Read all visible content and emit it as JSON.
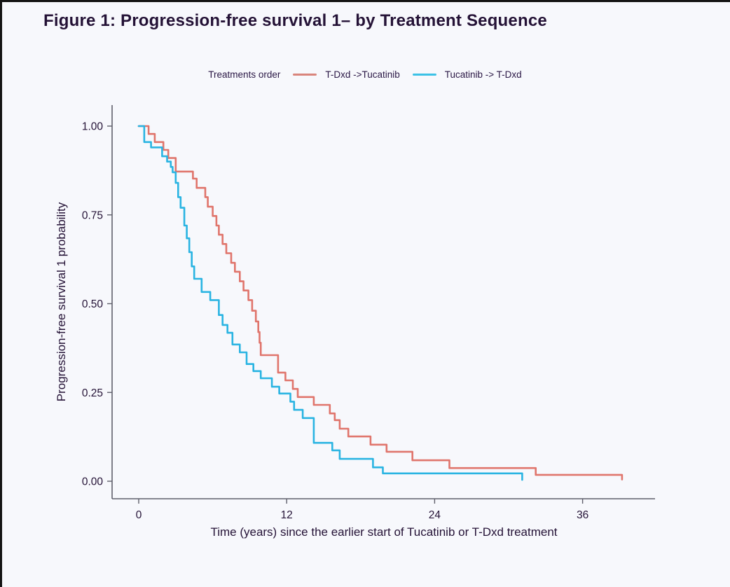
{
  "title": "Figure 1: Progression-free survival 1– by Treatment Sequence",
  "legend": {
    "title": "Treatments order",
    "items": [
      {
        "label": "T-Dxd ->Tucatinib",
        "swatch_color": "#d9857c"
      },
      {
        "label": "Tucatinib -> T-Dxd",
        "swatch_color": "#3cc2e6"
      }
    ]
  },
  "colors": {
    "curve_tdxd_first": "#e0756c",
    "curve_tucatinib_first": "#2ab4e2",
    "axis_line": "#5f5f6b",
    "text": "#241236",
    "background": "#f7f8fc"
  },
  "chart_data": {
    "type": "line",
    "subtype": "kaplan-meier-step",
    "title": "Figure 1: Progression-free survival 1– by Treatment Sequence",
    "xlabel": "Time (years) since the earlier start of Tucatinib or T-Dxd treatment",
    "ylabel": "Progression-free survival 1 probability",
    "legend_title": "Treatments order",
    "legend_position": "top",
    "grid": false,
    "xlim": [
      0,
      42
    ],
    "ylim": [
      0,
      1
    ],
    "x_ticks": [
      {
        "v": 0,
        "label": "0"
      },
      {
        "v": 12,
        "label": "12"
      },
      {
        "v": 24,
        "label": "24"
      },
      {
        "v": 36,
        "label": "36"
      }
    ],
    "y_ticks": [
      {
        "v": 1.0,
        "label": "1.00"
      },
      {
        "v": 0.75,
        "label": "0.75"
      },
      {
        "v": 0.5,
        "label": "0.50"
      },
      {
        "v": 0.25,
        "label": "0.25"
      },
      {
        "v": 0.0,
        "label": "0.00"
      }
    ],
    "series": [
      {
        "name": "T-Dxd ->Tucatinib",
        "color": "#e0756c",
        "points_time_probability": [
          [
            0,
            1.0
          ],
          [
            0.8,
            0.978
          ],
          [
            1.3,
            0.955
          ],
          [
            2.0,
            0.933
          ],
          [
            2.4,
            0.91
          ],
          [
            3.0,
            0.872
          ],
          [
            4.4,
            0.852
          ],
          [
            4.7,
            0.826
          ],
          [
            5.4,
            0.8
          ],
          [
            5.6,
            0.773
          ],
          [
            6.0,
            0.747
          ],
          [
            6.3,
            0.72
          ],
          [
            6.5,
            0.694
          ],
          [
            6.8,
            0.668
          ],
          [
            7.1,
            0.642
          ],
          [
            7.5,
            0.615
          ],
          [
            7.8,
            0.59
          ],
          [
            8.2,
            0.563
          ],
          [
            8.5,
            0.537
          ],
          [
            8.9,
            0.51
          ],
          [
            9.2,
            0.48
          ],
          [
            9.5,
            0.45
          ],
          [
            9.7,
            0.42
          ],
          [
            9.8,
            0.39
          ],
          [
            9.9,
            0.355
          ],
          [
            11.3,
            0.306
          ],
          [
            11.9,
            0.284
          ],
          [
            12.5,
            0.26
          ],
          [
            12.9,
            0.237
          ],
          [
            14.2,
            0.215
          ],
          [
            15.5,
            0.191
          ],
          [
            15.9,
            0.172
          ],
          [
            16.3,
            0.148
          ],
          [
            17.0,
            0.126
          ],
          [
            18.8,
            0.103
          ],
          [
            20.1,
            0.083
          ],
          [
            22.2,
            0.059
          ],
          [
            25.2,
            0.037
          ],
          [
            32.2,
            0.018
          ],
          [
            39.2,
            0.005
          ]
        ]
      },
      {
        "name": "Tucatinib -> T-Dxd",
        "color": "#2ab4e2",
        "points_time_probability": [
          [
            0,
            1.0
          ],
          [
            0.45,
            0.955
          ],
          [
            1.0,
            0.94
          ],
          [
            1.9,
            0.915
          ],
          [
            2.3,
            0.9
          ],
          [
            2.6,
            0.885
          ],
          [
            2.75,
            0.87
          ],
          [
            3.0,
            0.84
          ],
          [
            3.2,
            0.8
          ],
          [
            3.4,
            0.77
          ],
          [
            3.7,
            0.72
          ],
          [
            3.9,
            0.684
          ],
          [
            4.1,
            0.645
          ],
          [
            4.3,
            0.605
          ],
          [
            4.5,
            0.57
          ],
          [
            5.1,
            0.533
          ],
          [
            5.8,
            0.51
          ],
          [
            6.5,
            0.468
          ],
          [
            6.8,
            0.44
          ],
          [
            7.2,
            0.418
          ],
          [
            7.6,
            0.385
          ],
          [
            8.2,
            0.363
          ],
          [
            8.75,
            0.33
          ],
          [
            9.3,
            0.31
          ],
          [
            9.9,
            0.29
          ],
          [
            10.8,
            0.266
          ],
          [
            11.4,
            0.247
          ],
          [
            12.3,
            0.224
          ],
          [
            12.6,
            0.201
          ],
          [
            13.3,
            0.178
          ],
          [
            14.2,
            0.108
          ],
          [
            15.7,
            0.087
          ],
          [
            16.3,
            0.063
          ],
          [
            19.0,
            0.039
          ],
          [
            19.8,
            0.022
          ],
          [
            31.1,
            0.004
          ]
        ]
      }
    ]
  }
}
